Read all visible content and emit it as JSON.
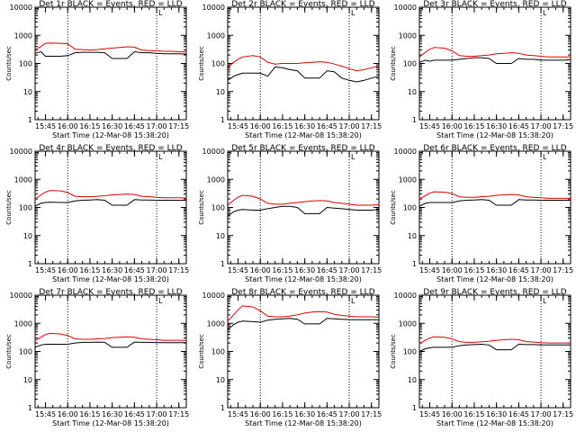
{
  "colors": {
    "events": "#000000",
    "lld": "#dd0000",
    "axis": "#000000",
    "background": "#ffffff"
  },
  "shared": {
    "xlabel": "Start Time (12-Mar-08 15:38:20)",
    "ylabel": "Counts/sec",
    "x_tick_labels": [
      "15:45",
      "16:00",
      "16:15",
      "16:30",
      "16:45",
      "17:00",
      "17:15"
    ],
    "y_tick_labels": [
      "1",
      "10",
      "100",
      "1000",
      "10000"
    ],
    "corner_mark": "L"
  },
  "chart_data": [
    {
      "type": "line",
      "title": "Det 1r BLACK = Events, RED = LLD",
      "xlabel": "Start Time (12-Mar-08 15:38:20)",
      "ylabel": "Counts/sec",
      "ylim": [
        1,
        10000
      ],
      "log_y": true,
      "xlim": [
        "15:38",
        "17:20"
      ],
      "vlines": [
        "16:00",
        "17:00"
      ],
      "x": [
        "15:38",
        "15:42",
        "15:45",
        "15:48",
        "15:55",
        "16:00",
        "16:05",
        "16:10",
        "16:15",
        "16:20",
        "16:25",
        "16:30",
        "16:35",
        "16:40",
        "16:45",
        "16:50",
        "16:55",
        "17:00",
        "17:05",
        "17:10",
        "17:15",
        "17:20"
      ],
      "series": [
        {
          "name": "Events",
          "color": "#000000",
          "values": [
            230,
            260,
            180,
            180,
            180,
            190,
            240,
            250,
            250,
            250,
            240,
            150,
            150,
            150,
            260,
            240,
            240,
            230,
            220,
            220,
            220,
            215
          ]
        },
        {
          "name": "LLD",
          "color": "#dd0000",
          "values": [
            310,
            400,
            520,
            530,
            520,
            500,
            320,
            310,
            300,
            310,
            330,
            350,
            370,
            390,
            380,
            300,
            290,
            280,
            270,
            270,
            260,
            255
          ]
        }
      ]
    },
    {
      "type": "line",
      "title": "Det 2r BLACK = Events, RED = LLD",
      "xlabel": "Start Time (12-Mar-08 15:38:20)",
      "ylabel": "Counts/sec",
      "ylim": [
        1,
        10000
      ],
      "log_y": true,
      "xlim": [
        "15:38",
        "17:20"
      ],
      "vlines": [
        "16:00",
        "17:00"
      ],
      "x": [
        "15:38",
        "15:42",
        "15:45",
        "15:48",
        "15:55",
        "16:00",
        "16:05",
        "16:10",
        "16:15",
        "16:20",
        "16:25",
        "16:30",
        "16:35",
        "16:40",
        "16:45",
        "16:50",
        "16:55",
        "17:00",
        "17:05",
        "17:10",
        "17:15",
        "17:20"
      ],
      "series": [
        {
          "name": "Events",
          "color": "#000000",
          "values": [
            25,
            35,
            40,
            45,
            45,
            45,
            35,
            75,
            70,
            60,
            55,
            30,
            30,
            30,
            55,
            50,
            30,
            25,
            22,
            25,
            30,
            35
          ]
        },
        {
          "name": "LLD",
          "color": "#dd0000",
          "values": [
            70,
            110,
            140,
            170,
            190,
            170,
            110,
            95,
            100,
            100,
            100,
            105,
            110,
            115,
            110,
            95,
            80,
            65,
            55,
            60,
            70,
            80
          ]
        }
      ]
    },
    {
      "type": "line",
      "title": "Det 3r BLACK = Events, RED = LLD",
      "xlabel": "Start Time (12-Mar-08 15:38:20)",
      "ylabel": "Counts/sec",
      "ylim": [
        1,
        10000
      ],
      "log_y": true,
      "xlim": [
        "15:38",
        "17:20"
      ],
      "vlines": [
        "16:00",
        "17:00"
      ],
      "x": [
        "15:38",
        "15:42",
        "15:45",
        "15:48",
        "15:55",
        "16:00",
        "16:05",
        "16:10",
        "16:15",
        "16:20",
        "16:25",
        "16:30",
        "16:35",
        "16:40",
        "16:45",
        "16:50",
        "16:55",
        "17:00",
        "17:05",
        "17:10",
        "17:15",
        "17:20"
      ],
      "series": [
        {
          "name": "Events",
          "color": "#000000",
          "values": [
            110,
            130,
            120,
            130,
            130,
            130,
            140,
            150,
            160,
            160,
            150,
            100,
            100,
            100,
            150,
            140,
            140,
            130,
            130,
            130,
            130,
            135
          ]
        },
        {
          "name": "LLD",
          "color": "#dd0000",
          "values": [
            170,
            250,
            320,
            370,
            350,
            280,
            190,
            180,
            180,
            190,
            200,
            220,
            230,
            240,
            230,
            200,
            190,
            180,
            170,
            170,
            170,
            170
          ]
        }
      ]
    },
    {
      "type": "line",
      "title": "Det 4r BLACK = Events, RED = LLD",
      "xlabel": "Start Time (12-Mar-08 15:38:20)",
      "ylabel": "Counts/sec",
      "ylim": [
        1,
        10000
      ],
      "log_y": true,
      "xlim": [
        "15:38",
        "17:20"
      ],
      "vlines": [
        "16:00",
        "17:00"
      ],
      "x": [
        "15:38",
        "15:42",
        "15:45",
        "15:48",
        "15:55",
        "16:00",
        "16:05",
        "16:10",
        "16:15",
        "16:20",
        "16:25",
        "16:30",
        "16:35",
        "16:40",
        "16:45",
        "16:50",
        "16:55",
        "17:00",
        "17:05",
        "17:10",
        "17:15",
        "17:20"
      ],
      "series": [
        {
          "name": "Events",
          "color": "#000000",
          "values": [
            110,
            140,
            150,
            155,
            150,
            150,
            170,
            180,
            185,
            190,
            180,
            120,
            120,
            120,
            190,
            185,
            185,
            180,
            180,
            180,
            180,
            180
          ]
        },
        {
          "name": "LLD",
          "color": "#dd0000",
          "values": [
            200,
            280,
            350,
            400,
            390,
            340,
            250,
            240,
            240,
            250,
            260,
            280,
            290,
            300,
            290,
            250,
            240,
            230,
            220,
            220,
            220,
            215
          ]
        }
      ]
    },
    {
      "type": "line",
      "title": "Det 5r BLACK = Events, RED = LLD",
      "xlabel": "Start Time (12-Mar-08 15:38:20)",
      "ylabel": "Counts/sec",
      "ylim": [
        1,
        10000
      ],
      "log_y": true,
      "xlim": [
        "15:38",
        "17:20"
      ],
      "vlines": [
        "16:00",
        "17:00"
      ],
      "x": [
        "15:38",
        "15:42",
        "15:45",
        "15:48",
        "15:55",
        "16:00",
        "16:05",
        "16:10",
        "16:15",
        "16:20",
        "16:25",
        "16:30",
        "16:35",
        "16:40",
        "16:45",
        "16:50",
        "16:55",
        "17:00",
        "17:05",
        "17:10",
        "17:15",
        "17:20"
      ],
      "series": [
        {
          "name": "Events",
          "color": "#000000",
          "values": [
            50,
            70,
            80,
            85,
            80,
            80,
            90,
            100,
            110,
            110,
            100,
            60,
            60,
            60,
            100,
            95,
            90,
            85,
            80,
            80,
            80,
            85
          ]
        },
        {
          "name": "LLD",
          "color": "#dd0000",
          "values": [
            120,
            180,
            230,
            270,
            250,
            200,
            140,
            130,
            130,
            140,
            150,
            160,
            170,
            175,
            170,
            150,
            140,
            130,
            120,
            120,
            120,
            125
          ]
        }
      ]
    },
    {
      "type": "line",
      "title": "Det 6r BLACK = Events, RED = LLD",
      "xlabel": "Start Time (12-Mar-08 15:38:20)",
      "ylabel": "Counts/sec",
      "ylim": [
        1,
        10000
      ],
      "log_y": true,
      "xlim": [
        "15:38",
        "17:20"
      ],
      "vlines": [
        "16:00",
        "17:00"
      ],
      "x": [
        "15:38",
        "15:42",
        "15:45",
        "15:48",
        "15:55",
        "16:00",
        "16:05",
        "16:10",
        "16:15",
        "16:20",
        "16:25",
        "16:30",
        "16:35",
        "16:40",
        "16:45",
        "16:50",
        "16:55",
        "17:00",
        "17:05",
        "17:10",
        "17:15",
        "17:20"
      ],
      "series": [
        {
          "name": "Events",
          "color": "#000000",
          "values": [
            110,
            140,
            150,
            150,
            150,
            150,
            170,
            180,
            185,
            190,
            180,
            120,
            120,
            120,
            190,
            185,
            185,
            180,
            180,
            180,
            180,
            180
          ]
        },
        {
          "name": "LLD",
          "color": "#dd0000",
          "values": [
            200,
            260,
            320,
            360,
            350,
            310,
            240,
            230,
            230,
            240,
            250,
            270,
            280,
            290,
            280,
            240,
            230,
            220,
            210,
            210,
            210,
            210
          ]
        }
      ]
    },
    {
      "type": "line",
      "title": "Det 7r BLACK = Events, RED = LLD",
      "xlabel": "Start Time (12-Mar-08 15:38:20)",
      "ylabel": "Counts/sec",
      "ylim": [
        1,
        10000
      ],
      "log_y": true,
      "xlim": [
        "15:38",
        "17:20"
      ],
      "vlines": [
        "16:00",
        "17:00"
      ],
      "x": [
        "15:38",
        "15:42",
        "15:45",
        "15:48",
        "15:55",
        "16:00",
        "16:05",
        "16:10",
        "16:15",
        "16:20",
        "16:25",
        "16:30",
        "16:35",
        "16:40",
        "16:45",
        "16:50",
        "16:55",
        "17:00",
        "17:05",
        "17:10",
        "17:15",
        "17:20"
      ],
      "series": [
        {
          "name": "Events",
          "color": "#000000",
          "values": [
            140,
            170,
            180,
            180,
            180,
            180,
            200,
            210,
            210,
            215,
            210,
            140,
            140,
            140,
            215,
            210,
            210,
            205,
            205,
            205,
            205,
            205
          ]
        },
        {
          "name": "LLD",
          "color": "#dd0000",
          "values": [
            240,
            320,
            400,
            440,
            420,
            370,
            280,
            270,
            270,
            280,
            290,
            310,
            320,
            330,
            320,
            280,
            270,
            260,
            250,
            250,
            250,
            245
          ]
        }
      ]
    },
    {
      "type": "line",
      "title": "Det 8r BLACK = Events, RED = LLD",
      "xlabel": "Start Time (12-Mar-08 15:38:20)",
      "ylabel": "Counts/sec",
      "ylim": [
        1,
        10000
      ],
      "log_y": true,
      "xlim": [
        "15:38",
        "17:20"
      ],
      "vlines": [
        "16:00",
        "17:00"
      ],
      "x": [
        "15:38",
        "15:42",
        "15:45",
        "15:48",
        "15:55",
        "16:00",
        "16:05",
        "16:10",
        "16:15",
        "16:20",
        "16:25",
        "16:30",
        "16:35",
        "16:40",
        "16:45",
        "16:50",
        "16:55",
        "17:00",
        "17:05",
        "17:10",
        "17:15",
        "17:20"
      ],
      "series": [
        {
          "name": "Events",
          "color": "#000000",
          "values": [
            600,
            900,
            1100,
            1200,
            1150,
            1100,
            1300,
            1400,
            1450,
            1500,
            1400,
            950,
            950,
            950,
            1500,
            1450,
            1400,
            1350,
            1350,
            1350,
            1350,
            1350
          ]
        },
        {
          "name": "LLD",
          "color": "#dd0000",
          "values": [
            1200,
            2000,
            3000,
            4200,
            3800,
            2800,
            1800,
            1700,
            1700,
            1800,
            2000,
            2300,
            2500,
            2600,
            2500,
            2100,
            1900,
            1800,
            1700,
            1700,
            1700,
            1650
          ]
        }
      ]
    },
    {
      "type": "line",
      "title": "Det 9r BLACK = Events, RED = LLD",
      "xlabel": "Start Time (12-Mar-08 15:38:20)",
      "ylabel": "Counts/sec",
      "ylim": [
        1,
        10000
      ],
      "log_y": true,
      "xlim": [
        "15:38",
        "17:20"
      ],
      "vlines": [
        "16:00",
        "17:00"
      ],
      "x": [
        "15:38",
        "15:42",
        "15:45",
        "15:48",
        "15:55",
        "16:00",
        "16:05",
        "16:10",
        "16:15",
        "16:20",
        "16:25",
        "16:30",
        "16:35",
        "16:40",
        "16:45",
        "16:50",
        "16:55",
        "17:00",
        "17:05",
        "17:10",
        "17:15",
        "17:20"
      ],
      "series": [
        {
          "name": "Events",
          "color": "#000000",
          "values": [
            100,
            125,
            135,
            140,
            140,
            140,
            160,
            170,
            175,
            180,
            170,
            115,
            115,
            115,
            180,
            175,
            175,
            170,
            170,
            170,
            170,
            170
          ]
        },
        {
          "name": "LLD",
          "color": "#dd0000",
          "values": [
            190,
            250,
            300,
            330,
            320,
            280,
            220,
            210,
            210,
            220,
            230,
            250,
            260,
            270,
            260,
            225,
            215,
            205,
            200,
            200,
            200,
            200
          ]
        }
      ]
    }
  ]
}
